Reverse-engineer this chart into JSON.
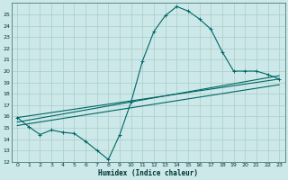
{
  "title": "",
  "xlabel": "Humidex (Indice chaleur)",
  "background_color": "#cce8e8",
  "grid_color": "#b0d8d8",
  "line_color": "#006666",
  "xlim": [
    -0.5,
    23.5
  ],
  "ylim": [
    12,
    26
  ],
  "xticks": [
    0,
    1,
    2,
    3,
    4,
    5,
    6,
    7,
    8,
    9,
    10,
    11,
    12,
    13,
    14,
    15,
    16,
    17,
    18,
    19,
    20,
    21,
    22,
    23
  ],
  "yticks": [
    12,
    13,
    14,
    15,
    16,
    17,
    18,
    19,
    20,
    21,
    22,
    23,
    24,
    25
  ],
  "line1_x": [
    0,
    1,
    2,
    3,
    4,
    5,
    6,
    7,
    8,
    9,
    10,
    11,
    12,
    13,
    14,
    15,
    16,
    17,
    18,
    19,
    20,
    21,
    22,
    23
  ],
  "line1_y": [
    15.9,
    15.1,
    14.4,
    14.8,
    14.6,
    14.5,
    13.8,
    13.0,
    12.2,
    14.4,
    17.3,
    20.9,
    23.5,
    24.9,
    25.7,
    25.3,
    24.6,
    23.7,
    21.7,
    20.0,
    20.0,
    20.0,
    19.7,
    19.3
  ],
  "line2_x": [
    0,
    23
  ],
  "line2_y": [
    15.9,
    19.3
  ],
  "line3_x": [
    0,
    23
  ],
  "line3_y": [
    15.5,
    19.6
  ],
  "line4_x": [
    0,
    23
  ],
  "line4_y": [
    15.2,
    18.8
  ]
}
